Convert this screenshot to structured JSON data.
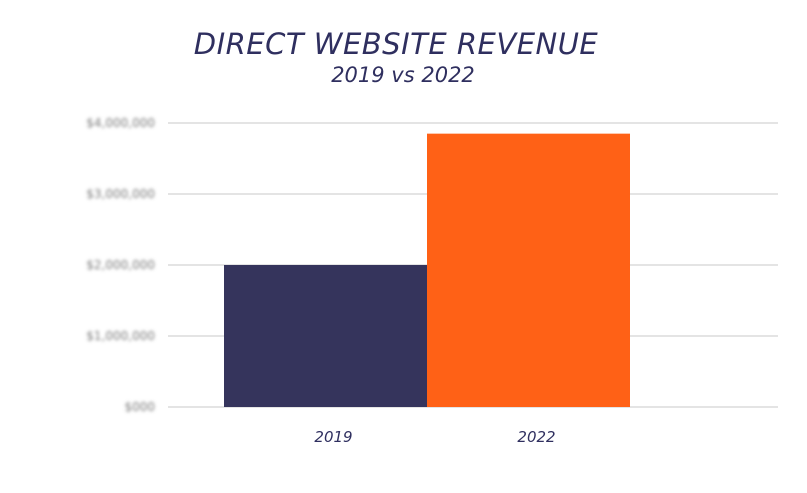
{
  "chart_data": {
    "type": "bar",
    "title": "DIRECT WEBSITE REVENUE",
    "subtitle": "2019 vs 2022",
    "xlabel": "",
    "ylabel": "",
    "categories": [
      "2019",
      "2022"
    ],
    "values": [
      2000000,
      3850000
    ],
    "colors": [
      "#35345c",
      "#ff6116"
    ],
    "ylim": [
      0,
      4000000
    ],
    "y_ticks": [
      "$000",
      "$1,000,000",
      "$2,000,000",
      "$3,000,000",
      "$4,000,000"
    ],
    "y_tick_values": [
      0,
      1000000,
      2000000,
      3000000,
      4000000
    ],
    "y_tick_labels_obscured": true,
    "grid": true,
    "legend": "none"
  }
}
